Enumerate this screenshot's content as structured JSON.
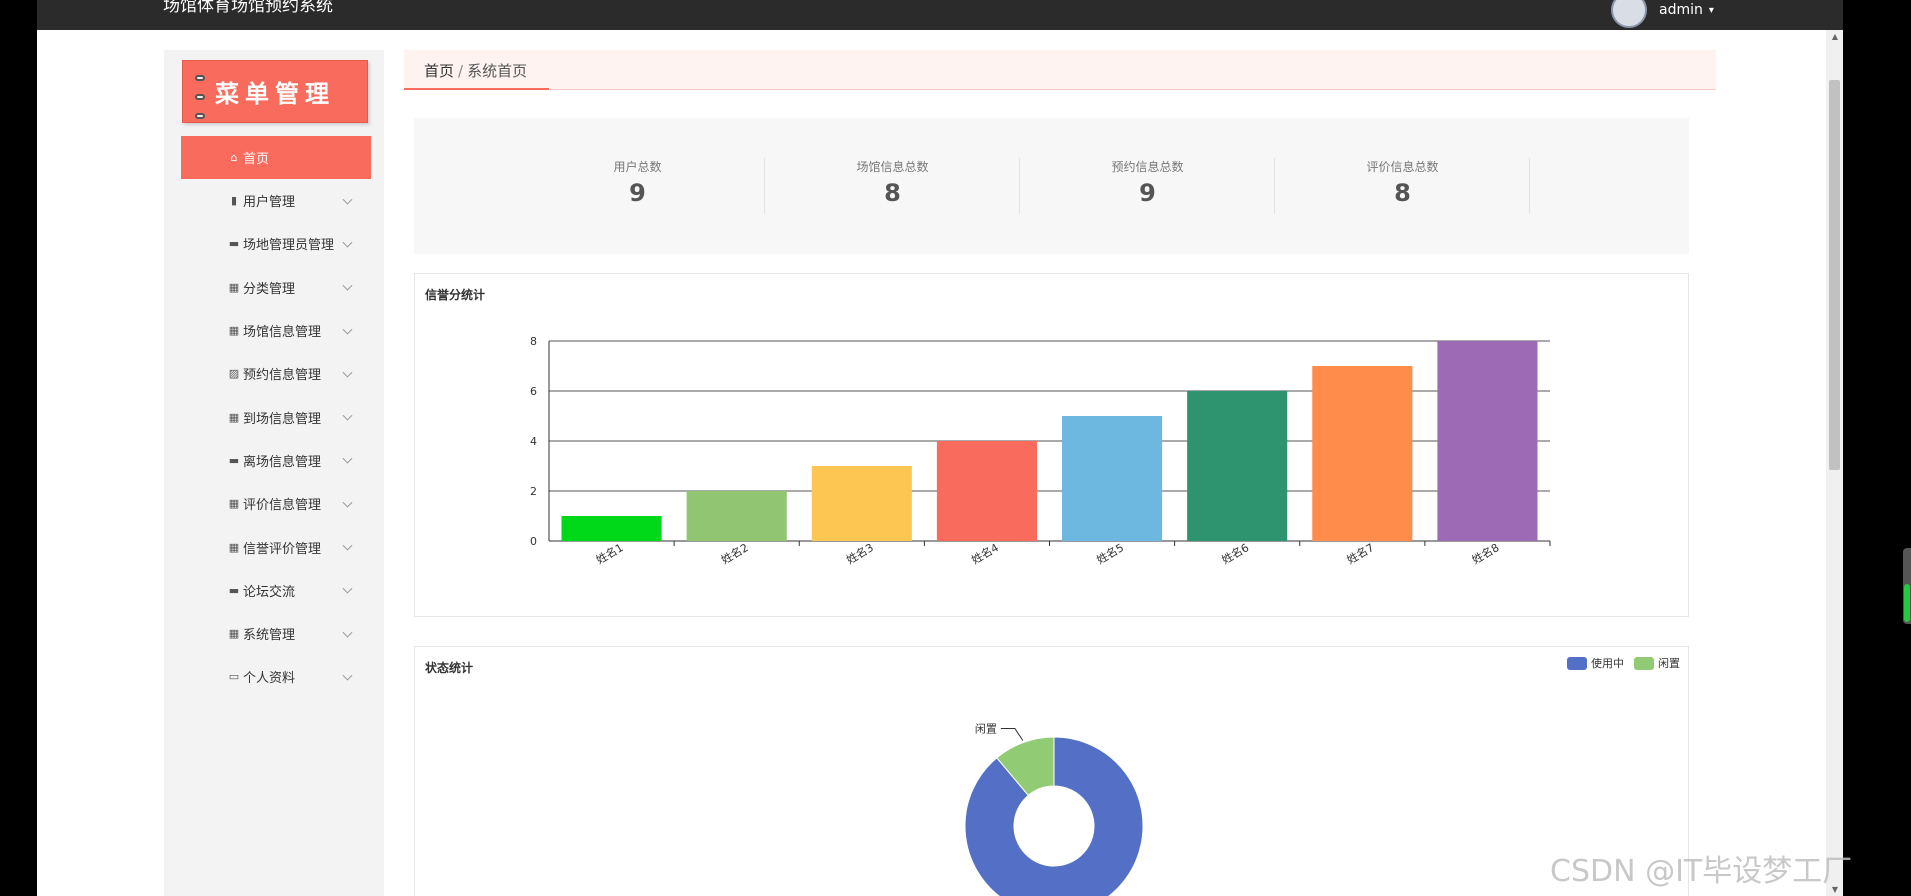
{
  "header": {
    "title": "场馆体育场馆预约系统",
    "user_name": "admin"
  },
  "sidebar": {
    "title": "菜单管理",
    "items": [
      {
        "label": "首页",
        "icon": "home-icon",
        "glyph": "⌂",
        "active": true
      },
      {
        "label": "用户管理",
        "icon": "clipboard-icon",
        "glyph": "▮"
      },
      {
        "label": "场地管理员管理",
        "icon": "pin-icon",
        "glyph": "▬"
      },
      {
        "label": "分类管理",
        "icon": "grid-icon",
        "glyph": "▦"
      },
      {
        "label": "场馆信息管理",
        "icon": "grid-icon",
        "glyph": "▦"
      },
      {
        "label": "预约信息管理",
        "icon": "chart-icon",
        "glyph": "▨"
      },
      {
        "label": "到场信息管理",
        "icon": "grid-icon",
        "glyph": "▦"
      },
      {
        "label": "离场信息管理",
        "icon": "toolbox-icon",
        "glyph": "▬"
      },
      {
        "label": "评价信息管理",
        "icon": "grid-icon",
        "glyph": "▦"
      },
      {
        "label": "信誉评价管理",
        "icon": "grid-icon",
        "glyph": "▦"
      },
      {
        "label": "论坛交流",
        "icon": "chat-icon",
        "glyph": "▬"
      },
      {
        "label": "系统管理",
        "icon": "grid-icon",
        "glyph": "▦"
      },
      {
        "label": "个人资料",
        "icon": "profile-icon",
        "glyph": "▭"
      }
    ]
  },
  "breadcrumb": {
    "home": "首页",
    "sep": "/",
    "current": "系统首页"
  },
  "stats": [
    {
      "label": "用户总数",
      "value": "9"
    },
    {
      "label": "场馆信息总数",
      "value": "8"
    },
    {
      "label": "预约信息总数",
      "value": "9"
    },
    {
      "label": "评价信息总数",
      "value": "8"
    }
  ],
  "chart_data": [
    {
      "type": "bar",
      "title": "信誉分统计",
      "categories": [
        "姓名1",
        "姓名2",
        "姓名3",
        "姓名4",
        "姓名5",
        "姓名6",
        "姓名7",
        "姓名8"
      ],
      "values": [
        1,
        2,
        3,
        4,
        5,
        6,
        7,
        8
      ],
      "colors": [
        "#00d91a",
        "#91c572",
        "#fdc653",
        "#f96c5d",
        "#6cb8e0",
        "#2e9470",
        "#ff8c4b",
        "#9d6bb5"
      ],
      "ylim": [
        0,
        8
      ],
      "yticks": [
        0,
        2,
        4,
        6,
        8
      ],
      "grid": true
    },
    {
      "type": "pie",
      "title": "状态统计",
      "donut": true,
      "labels": [
        "使用中",
        "闲置"
      ],
      "values": [
        8,
        1
      ],
      "colors": [
        "#5470c6",
        "#91cc75"
      ],
      "visible_slice_labels": [
        "闲置"
      ],
      "legend": "top-right"
    }
  ],
  "watermark": "CSDN @IT毕设梦工厂"
}
